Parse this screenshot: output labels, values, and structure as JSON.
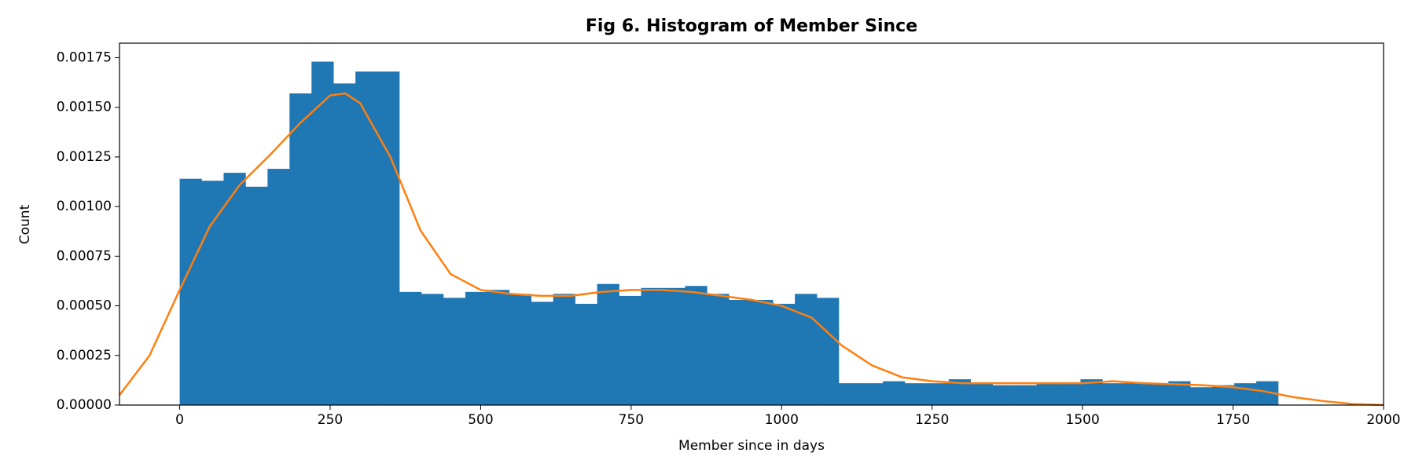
{
  "chart_data": {
    "type": "histogram",
    "title": "Fig 6. Histogram of Member Since",
    "x_label": "Member since in days",
    "y_label": "Count",
    "bins": [
      0,
      36.5,
      73,
      109.5,
      146,
      182.5,
      219,
      255.5,
      292,
      328.5,
      365,
      401.5,
      438,
      474.5,
      511,
      547.5,
      584,
      620.5,
      657,
      693.5,
      730,
      766.5,
      803,
      839.5,
      876,
      912.5,
      949,
      985.5,
      1022,
      1058.5,
      1095,
      1131.5,
      1168,
      1204.5,
      1241,
      1277.5,
      1314,
      1350.5,
      1387,
      1423.5,
      1460,
      1496.5,
      1533,
      1569.5,
      1606,
      1642.5,
      1679,
      1715.5,
      1752,
      1788.5,
      1825
    ],
    "counts": [
      0.00114,
      0.00113,
      0.00117,
      0.0011,
      0.00119,
      0.00157,
      0.00173,
      0.00162,
      0.00168,
      0.00168,
      0.00057,
      0.00056,
      0.00054,
      0.00057,
      0.00058,
      0.00056,
      0.00052,
      0.00056,
      0.00051,
      0.00061,
      0.00055,
      0.00059,
      0.00059,
      0.0006,
      0.00056,
      0.00053,
      0.00053,
      0.00051,
      0.00056,
      0.00054,
      0.00011,
      0.00011,
      0.00012,
      0.00011,
      0.00011,
      0.00013,
      0.00011,
      0.0001,
      0.0001,
      0.00011,
      0.00011,
      0.00013,
      0.00011,
      0.00011,
      0.00011,
      0.00012,
      9e-05,
      0.0001,
      0.00011,
      0.00012
    ],
    "color": "#1f77b4",
    "kde": {
      "color": "#ff7f0e",
      "x": [
        -100,
        -50,
        0,
        50,
        100,
        150,
        200,
        250,
        275,
        300,
        350,
        400,
        450,
        500,
        550,
        600,
        650,
        700,
        750,
        800,
        850,
        900,
        950,
        1000,
        1050,
        1100,
        1150,
        1200,
        1250,
        1300,
        1400,
        1500,
        1550,
        1600,
        1700,
        1750,
        1800,
        1850,
        1900,
        1950,
        2000
      ],
      "values": [
        5e-05,
        0.00025,
        0.00058,
        0.0009,
        0.00111,
        0.00126,
        0.00142,
        0.00156,
        0.00157,
        0.00152,
        0.00125,
        0.00088,
        0.00066,
        0.00058,
        0.00056,
        0.00055,
        0.00055,
        0.00057,
        0.00058,
        0.00058,
        0.00057,
        0.00055,
        0.00053,
        0.0005,
        0.00044,
        0.0003,
        0.0002,
        0.00014,
        0.00012,
        0.00011,
        0.00011,
        0.00011,
        0.00012,
        0.00011,
        0.0001,
        9e-05,
        7e-05,
        4e-05,
        2e-05,
        5e-06,
        0
      ]
    },
    "xlim": [
      -100,
      2000
    ],
    "ylim": [
      0,
      0.001823
    ],
    "xticks": [
      0,
      250,
      500,
      750,
      1000,
      1250,
      1500,
      1750,
      2000
    ],
    "yticks": [
      {
        "value": 0,
        "label": "0.00000"
      },
      {
        "value": 0.00025,
        "label": "0.00025"
      },
      {
        "value": 0.0005,
        "label": "0.00050"
      },
      {
        "value": 0.00075,
        "label": "0.00075"
      },
      {
        "value": 0.001,
        "label": "0.00100"
      },
      {
        "value": 0.00125,
        "label": "0.00125"
      },
      {
        "value": 0.0015,
        "label": "0.00150"
      },
      {
        "value": 0.00175,
        "label": "0.00175"
      }
    ]
  }
}
